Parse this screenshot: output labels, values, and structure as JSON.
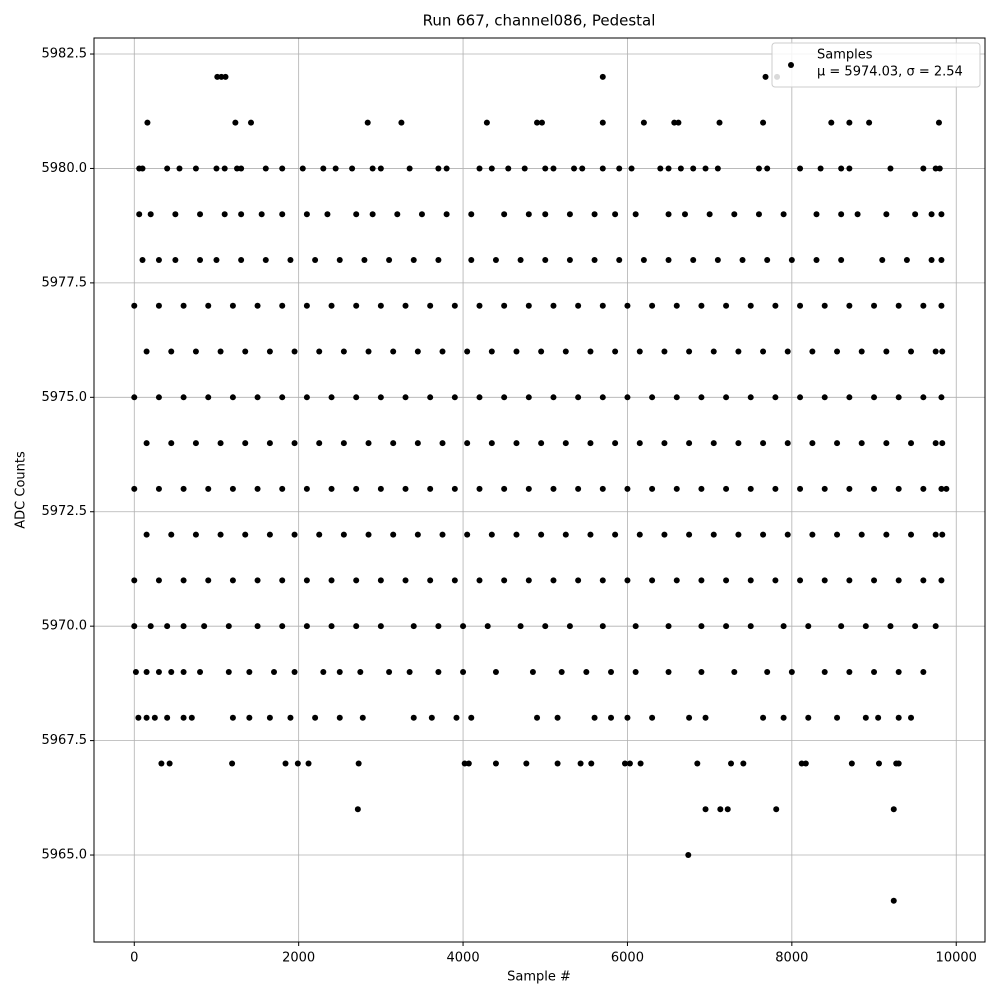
{
  "chart_data": {
    "type": "scatter",
    "title": "Run 667, channel086, Pedestal",
    "xlabel": "Sample #",
    "ylabel": "ADC Counts",
    "xlim": [
      -490,
      10350
    ],
    "ylim": [
      5963.1,
      5982.85
    ],
    "xticks": [
      0,
      2000,
      4000,
      6000,
      8000,
      10000
    ],
    "yticks": [
      {
        "value": 5965,
        "label": "5965.0"
      },
      5967.5,
      {
        "value": 5970,
        "label": "5970.0"
      },
      5972.5,
      {
        "value": 5975,
        "label": "5975.0"
      },
      5977.5,
      {
        "value": 5980,
        "label": "5980.0"
      },
      5982.5
    ],
    "grid": true,
    "legend": "upper right",
    "series": [
      {
        "name": "Samples",
        "stats": "μ = 5974.03, σ = 2.54",
        "color": "#000000",
        "x": [
          1010,
          1060,
          1110,
          5700,
          7680,
          7820,
          160,
          1230,
          1420,
          2840,
          3250,
          4290,
          4900,
          4960,
          5700,
          6200,
          6570,
          6620,
          7120,
          7650,
          8480,
          8700,
          8940,
          9790,
          60,
          100,
          400,
          550,
          750,
          1000,
          1100,
          1250,
          1300,
          1600,
          1800,
          2050,
          2300,
          2450,
          2650,
          2900,
          3000,
          3350,
          3700,
          3800,
          4200,
          4350,
          4550,
          4750,
          5000,
          5100,
          5350,
          5450,
          5700,
          5900,
          6050,
          6400,
          6500,
          6650,
          6800,
          6950,
          7100,
          7600,
          7700,
          8100,
          8350,
          8600,
          8700,
          9200,
          9600,
          9750,
          9800,
          60,
          200,
          500,
          800,
          1100,
          1300,
          1550,
          1800,
          2100,
          2350,
          2700,
          2900,
          3200,
          3500,
          3800,
          4100,
          4500,
          4800,
          5000,
          5300,
          5600,
          5850,
          6100,
          6500,
          6700,
          7000,
          7300,
          7600,
          7900,
          8300,
          8600,
          8800,
          9150,
          9500,
          9700,
          9820,
          100,
          300,
          500,
          800,
          1000,
          1300,
          1600,
          1900,
          2200,
          2500,
          2800,
          3100,
          3400,
          3700,
          4100,
          4400,
          4700,
          5000,
          5300,
          5600,
          5900,
          6200,
          6500,
          6800,
          7100,
          7400,
          7700,
          8000,
          8300,
          8600,
          9100,
          9400,
          9700,
          9820,
          0,
          300,
          600,
          900,
          1200,
          1500,
          1800,
          2100,
          2400,
          2700,
          3000,
          3300,
          3600,
          3900,
          4200,
          4500,
          4800,
          5100,
          5400,
          5700,
          6000,
          6300,
          6600,
          6900,
          7200,
          7500,
          7800,
          8100,
          8400,
          8700,
          9000,
          9300,
          9600,
          9820,
          150,
          450,
          750,
          1050,
          1350,
          1650,
          1950,
          2250,
          2550,
          2850,
          3150,
          3450,
          3750,
          4050,
          4350,
          4650,
          4950,
          5250,
          5550,
          5850,
          6150,
          6450,
          6750,
          7050,
          7350,
          7650,
          7950,
          8250,
          8550,
          8850,
          9150,
          9450,
          9750,
          9830,
          0,
          300,
          600,
          900,
          1200,
          1500,
          1800,
          2100,
          2400,
          2700,
          3000,
          3300,
          3600,
          3900,
          4200,
          4500,
          4800,
          5100,
          5400,
          5700,
          6000,
          6300,
          6600,
          6900,
          7200,
          7500,
          7800,
          8100,
          8400,
          8700,
          9000,
          9300,
          9600,
          9820,
          150,
          450,
          750,
          1050,
          1350,
          1650,
          1950,
          2250,
          2550,
          2850,
          3150,
          3450,
          3750,
          4050,
          4350,
          4650,
          4950,
          5250,
          5550,
          5850,
          6150,
          6450,
          6750,
          7050,
          7350,
          7650,
          7950,
          8250,
          8550,
          8850,
          9150,
          9450,
          9750,
          9830,
          0,
          300,
          600,
          900,
          1200,
          1500,
          1800,
          2100,
          2400,
          2700,
          3000,
          3300,
          3600,
          3900,
          4200,
          4500,
          4800,
          5100,
          5400,
          5700,
          6000,
          6300,
          6600,
          6900,
          7200,
          7500,
          7800,
          8100,
          8400,
          8700,
          9000,
          9300,
          9600,
          9820,
          9880,
          150,
          450,
          750,
          1050,
          1350,
          1650,
          1950,
          2250,
          2550,
          2850,
          3150,
          3450,
          3750,
          4050,
          4350,
          4650,
          4950,
          5250,
          5550,
          5850,
          6150,
          6450,
          6750,
          7050,
          7350,
          7650,
          7950,
          8250,
          8550,
          8850,
          9150,
          9450,
          9750,
          9830,
          0,
          300,
          600,
          900,
          1200,
          1500,
          1800,
          2100,
          2400,
          2700,
          3000,
          3300,
          3600,
          3900,
          4200,
          4500,
          4800,
          5100,
          5400,
          5700,
          6000,
          6300,
          6600,
          6900,
          7200,
          7500,
          7800,
          8100,
          8400,
          8700,
          9000,
          9300,
          9600,
          9820,
          0,
          200,
          400,
          600,
          850,
          1150,
          1500,
          1800,
          2100,
          2400,
          2700,
          3000,
          3400,
          3700,
          4000,
          4300,
          4700,
          5000,
          5300,
          5700,
          6100,
          6500,
          6900,
          7200,
          7500,
          7900,
          8200,
          8600,
          8900,
          9200,
          9500,
          9750,
          20,
          150,
          300,
          450,
          600,
          800,
          1150,
          1400,
          1700,
          1950,
          2300,
          2500,
          2750,
          3100,
          3350,
          3700,
          4000,
          4400,
          4850,
          5200,
          5500,
          5800,
          6100,
          6500,
          6900,
          7300,
          7700,
          8000,
          8400,
          8700,
          9000,
          9300,
          9600,
          50,
          150,
          250,
          400,
          600,
          700,
          1200,
          1400,
          1650,
          1900,
          2200,
          2500,
          2780,
          3400,
          3620,
          3920,
          4100,
          4900,
          5150,
          5600,
          5800,
          6000,
          6300,
          6750,
          6950,
          7650,
          7900,
          8200,
          8550,
          8900,
          9050,
          9300,
          9450,
          330,
          430,
          1190,
          1840,
          1990,
          2120,
          2730,
          4020,
          4070,
          4400,
          4770,
          5150,
          5430,
          5560,
          5970,
          6030,
          6160,
          6850,
          7260,
          7410,
          8120,
          8170,
          8730,
          9060,
          9270,
          9300,
          2720,
          6950,
          7130,
          7220,
          7810,
          9240,
          6740,
          9240
        ],
        "y": [
          5982,
          5982,
          5982,
          5982,
          5982,
          5982,
          5981,
          5981,
          5981,
          5981,
          5981,
          5981,
          5981,
          5981,
          5981,
          5981,
          5981,
          5981,
          5981,
          5981,
          5981,
          5981,
          5981,
          5981,
          5980,
          5980,
          5980,
          5980,
          5980,
          5980,
          5980,
          5980,
          5980,
          5980,
          5980,
          5980,
          5980,
          5980,
          5980,
          5980,
          5980,
          5980,
          5980,
          5980,
          5980,
          5980,
          5980,
          5980,
          5980,
          5980,
          5980,
          5980,
          5980,
          5980,
          5980,
          5980,
          5980,
          5980,
          5980,
          5980,
          5980,
          5980,
          5980,
          5980,
          5980,
          5980,
          5980,
          5980,
          5980,
          5980,
          5980,
          5979,
          5979,
          5979,
          5979,
          5979,
          5979,
          5979,
          5979,
          5979,
          5979,
          5979,
          5979,
          5979,
          5979,
          5979,
          5979,
          5979,
          5979,
          5979,
          5979,
          5979,
          5979,
          5979,
          5979,
          5979,
          5979,
          5979,
          5979,
          5979,
          5979,
          5979,
          5979,
          5979,
          5979,
          5979,
          5979,
          5978,
          5978,
          5978,
          5978,
          5978,
          5978,
          5978,
          5978,
          5978,
          5978,
          5978,
          5978,
          5978,
          5978,
          5978,
          5978,
          5978,
          5978,
          5978,
          5978,
          5978,
          5978,
          5978,
          5978,
          5978,
          5978,
          5978,
          5978,
          5978,
          5978,
          5978,
          5978,
          5978,
          5978,
          5977,
          5977,
          5977,
          5977,
          5977,
          5977,
          5977,
          5977,
          5977,
          5977,
          5977,
          5977,
          5977,
          5977,
          5977,
          5977,
          5977,
          5977,
          5977,
          5977,
          5977,
          5977,
          5977,
          5977,
          5977,
          5977,
          5977,
          5977,
          5977,
          5977,
          5977,
          5977,
          5977,
          5977,
          5976,
          5976,
          5976,
          5976,
          5976,
          5976,
          5976,
          5976,
          5976,
          5976,
          5976,
          5976,
          5976,
          5976,
          5976,
          5976,
          5976,
          5976,
          5976,
          5976,
          5976,
          5976,
          5976,
          5976,
          5976,
          5976,
          5976,
          5976,
          5976,
          5976,
          5976,
          5976,
          5976,
          5976,
          5975,
          5975,
          5975,
          5975,
          5975,
          5975,
          5975,
          5975,
          5975,
          5975,
          5975,
          5975,
          5975,
          5975,
          5975,
          5975,
          5975,
          5975,
          5975,
          5975,
          5975,
          5975,
          5975,
          5975,
          5975,
          5975,
          5975,
          5975,
          5975,
          5975,
          5975,
          5975,
          5975,
          5975,
          5974,
          5974,
          5974,
          5974,
          5974,
          5974,
          5974,
          5974,
          5974,
          5974,
          5974,
          5974,
          5974,
          5974,
          5974,
          5974,
          5974,
          5974,
          5974,
          5974,
          5974,
          5974,
          5974,
          5974,
          5974,
          5974,
          5974,
          5974,
          5974,
          5974,
          5974,
          5974,
          5974,
          5974,
          5973,
          5973,
          5973,
          5973,
          5973,
          5973,
          5973,
          5973,
          5973,
          5973,
          5973,
          5973,
          5973,
          5973,
          5973,
          5973,
          5973,
          5973,
          5973,
          5973,
          5973,
          5973,
          5973,
          5973,
          5973,
          5973,
          5973,
          5973,
          5973,
          5973,
          5973,
          5973,
          5973,
          5973,
          5973,
          5972,
          5972,
          5972,
          5972,
          5972,
          5972,
          5972,
          5972,
          5972,
          5972,
          5972,
          5972,
          5972,
          5972,
          5972,
          5972,
          5972,
          5972,
          5972,
          5972,
          5972,
          5972,
          5972,
          5972,
          5972,
          5972,
          5972,
          5972,
          5972,
          5972,
          5972,
          5972,
          5972,
          5972,
          5971,
          5971,
          5971,
          5971,
          5971,
          5971,
          5971,
          5971,
          5971,
          5971,
          5971,
          5971,
          5971,
          5971,
          5971,
          5971,
          5971,
          5971,
          5971,
          5971,
          5971,
          5971,
          5971,
          5971,
          5971,
          5971,
          5971,
          5971,
          5971,
          5971,
          5971,
          5971,
          5971,
          5971,
          5970,
          5970,
          5970,
          5970,
          5970,
          5970,
          5970,
          5970,
          5970,
          5970,
          5970,
          5970,
          5970,
          5970,
          5970,
          5970,
          5970,
          5970,
          5970,
          5970,
          5970,
          5970,
          5970,
          5970,
          5970,
          5970,
          5970,
          5970,
          5970,
          5970,
          5970,
          5970,
          5969,
          5969,
          5969,
          5969,
          5969,
          5969,
          5969,
          5969,
          5969,
          5969,
          5969,
          5969,
          5969,
          5969,
          5969,
          5969,
          5969,
          5969,
          5969,
          5969,
          5969,
          5969,
          5969,
          5969,
          5969,
          5969,
          5969,
          5969,
          5969,
          5969,
          5969,
          5969,
          5969,
          5968,
          5968,
          5968,
          5968,
          5968,
          5968,
          5968,
          5968,
          5968,
          5968,
          5968,
          5968,
          5968,
          5968,
          5968,
          5968,
          5968,
          5968,
          5968,
          5968,
          5968,
          5968,
          5968,
          5968,
          5968,
          5968,
          5968,
          5968,
          5968,
          5968,
          5968,
          5968,
          5968,
          5967,
          5967,
          5967,
          5967,
          5967,
          5967,
          5967,
          5967,
          5967,
          5967,
          5967,
          5967,
          5967,
          5967,
          5967,
          5967,
          5967,
          5967,
          5967,
          5967,
          5967,
          5967,
          5967,
          5967,
          5967,
          5967,
          5966,
          5966,
          5966,
          5966,
          5966,
          5966,
          5965,
          5964
        ]
      }
    ]
  }
}
